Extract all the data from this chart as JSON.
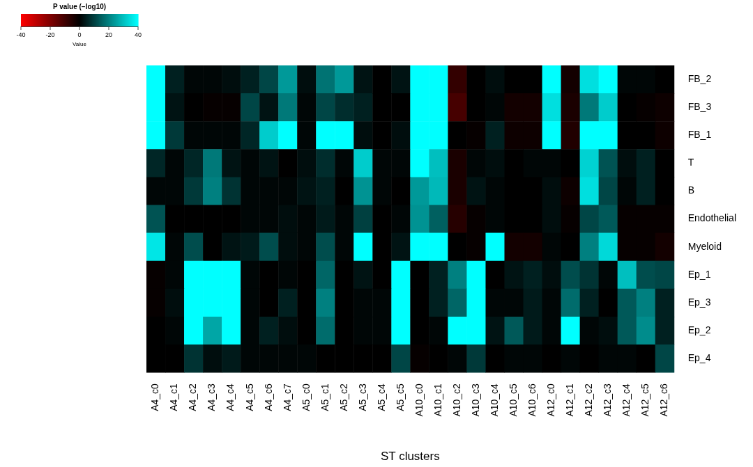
{
  "chart_data": {
    "type": "heatmap",
    "xlabel": "ST clusters",
    "clabel": "P value (−log10)",
    "annotations": [
      "Value"
    ],
    "categories": [
      "A4_c0",
      "A4_c1",
      "A4_c2",
      "A4_c3",
      "A4_c4",
      "A4_c5",
      "A4_c6",
      "A4_c7",
      "A5_c0",
      "A5_c1",
      "A5_c2",
      "A5_c3",
      "A5_c4",
      "A5_c5",
      "A10_c0",
      "A10_c1",
      "A10_c2",
      "A10_c3",
      "A10_c4",
      "A10_c5",
      "A10_c6",
      "A12_c0",
      "A12_c1",
      "A12_c2",
      "A12_c3",
      "A12_c4",
      "A12_c5",
      "A12_c6"
    ],
    "y_categories": [
      "FB_2",
      "FB_3",
      "FB_1",
      "T",
      "B",
      "Endothelial",
      "Myeloid",
      "Ep_1",
      "Ep_3",
      "Ep_2",
      "Ep_4"
    ],
    "cells": [
      [
        40,
        5,
        1,
        1,
        2,
        5,
        11,
        24,
        2,
        18,
        24,
        3,
        0,
        3,
        40,
        40,
        -8,
        0,
        2,
        0,
        0,
        40,
        -3,
        35,
        40,
        1,
        1,
        0
      ],
      [
        40,
        3,
        0,
        -1,
        -1,
        11,
        3,
        19,
        1,
        11,
        7,
        5,
        0,
        0,
        40,
        40,
        -11,
        0,
        1,
        -3,
        -3,
        35,
        -4,
        19,
        32,
        0,
        -1,
        -2
      ],
      [
        40,
        9,
        1,
        1,
        1,
        6,
        32,
        40,
        1,
        40,
        40,
        2,
        0,
        2,
        40,
        40,
        0,
        -1,
        5,
        -2,
        -2,
        40,
        -5,
        40,
        40,
        0,
        0,
        -2
      ],
      [
        6,
        1,
        6,
        19,
        3,
        1,
        3,
        0,
        2,
        7,
        1,
        32,
        1,
        1,
        40,
        30,
        -4,
        1,
        2,
        0,
        1,
        1,
        0,
        33,
        13,
        2,
        5,
        0
      ],
      [
        1,
        1,
        9,
        20,
        8,
        1,
        1,
        1,
        3,
        5,
        0,
        23,
        1,
        0,
        24,
        29,
        -4,
        3,
        1,
        0,
        0,
        2,
        -2,
        35,
        11,
        1,
        5,
        0
      ],
      [
        13,
        0,
        0,
        0,
        0,
        1,
        1,
        2,
        1,
        4,
        1,
        10,
        0,
        1,
        23,
        15,
        -6,
        -1,
        1,
        0,
        0,
        2,
        -1,
        11,
        14,
        -1,
        -1,
        -1
      ],
      [
        36,
        1,
        12,
        0,
        3,
        4,
        12,
        2,
        1,
        12,
        1,
        40,
        0,
        3,
        40,
        40,
        0,
        -1,
        40,
        -3,
        -3,
        1,
        0,
        20,
        34,
        -1,
        -1,
        -3
      ],
      [
        -1,
        1,
        40,
        40,
        40,
        1,
        0,
        1,
        0,
        16,
        0,
        3,
        0,
        40,
        0,
        5,
        20,
        40,
        0,
        3,
        5,
        2,
        12,
        8,
        1,
        30,
        12,
        11
      ],
      [
        -1,
        2,
        40,
        40,
        40,
        1,
        0,
        5,
        0,
        20,
        0,
        1,
        1,
        40,
        0,
        5,
        16,
        40,
        1,
        1,
        4,
        1,
        17,
        5,
        0,
        14,
        20,
        5
      ],
      [
        0,
        1,
        40,
        26,
        40,
        1,
        5,
        2,
        0,
        17,
        0,
        1,
        1,
        40,
        0,
        1,
        40,
        40,
        3,
        14,
        4,
        1,
        40,
        1,
        2,
        14,
        22,
        5
      ],
      [
        0,
        0,
        8,
        2,
        4,
        1,
        1,
        1,
        1,
        0,
        0,
        0,
        0,
        11,
        -1,
        0,
        1,
        9,
        0,
        1,
        1,
        0,
        1,
        0,
        1,
        1,
        0,
        11
      ]
    ],
    "clim": [
      -40,
      40
    ],
    "cticks": [
      -40,
      -20,
      0,
      20,
      40
    ]
  }
}
